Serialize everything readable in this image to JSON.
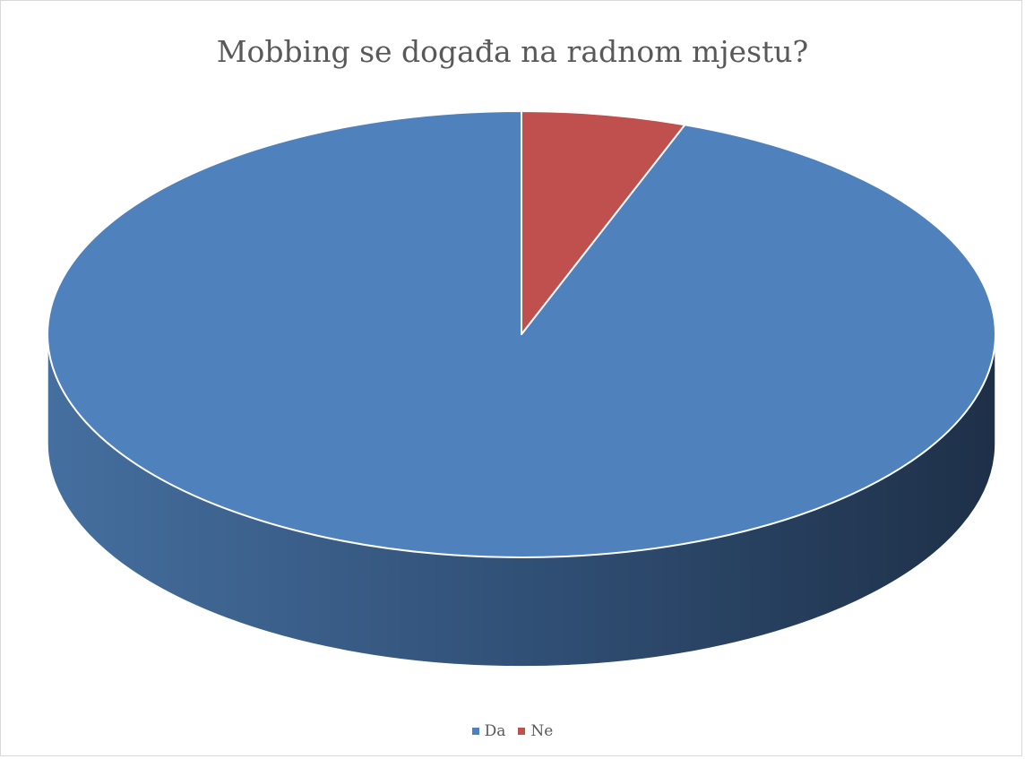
{
  "chart_data": {
    "type": "pie",
    "title": "Mobbing se događa na radnom mjestu?",
    "categories": [
      "Da",
      "Ne"
    ],
    "values": [
      94.4,
      5.6
    ],
    "colors": [
      "#4f81bd",
      "#c0504d"
    ],
    "style": "3d",
    "legend": "bottom"
  }
}
